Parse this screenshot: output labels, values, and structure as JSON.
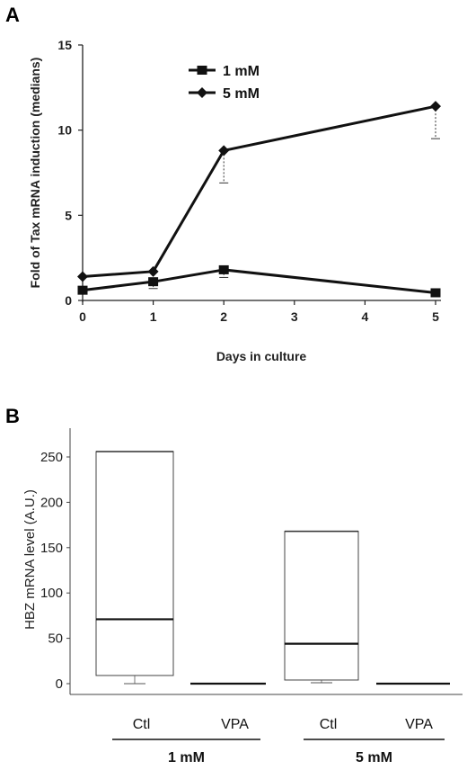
{
  "chart_data": [
    {
      "panel": "A",
      "type": "line",
      "xlabel": "Days in culture",
      "ylabel": "Fold of Tax mRNA induction (medians)",
      "xlim": [
        0,
        5
      ],
      "ylim": [
        0,
        15
      ],
      "x_ticks": [
        0,
        1,
        2,
        3,
        4,
        5
      ],
      "y_ticks": [
        0,
        5,
        10,
        15
      ],
      "legend_position": "top-center",
      "series": [
        {
          "name": "1 mM",
          "marker": "square",
          "x": [
            0,
            1,
            2,
            5
          ],
          "y": [
            0.6,
            1.1,
            1.8,
            0.45
          ],
          "err_low": [
            0.6,
            0.7,
            1.35,
            0.45
          ],
          "err_high": [
            0.6,
            1.1,
            1.8,
            0.45
          ]
        },
        {
          "name": "5 mM",
          "marker": "diamond",
          "x": [
            0,
            1,
            2,
            5
          ],
          "y": [
            1.4,
            1.7,
            8.8,
            11.4
          ],
          "err_low": [
            1.4,
            1.7,
            6.9,
            9.5
          ],
          "err_high": [
            1.4,
            1.7,
            8.8,
            11.4
          ]
        }
      ]
    },
    {
      "panel": "B",
      "type": "box",
      "ylabel": "HBZ mRNA level (A.U.)",
      "ylim": [
        0,
        260
      ],
      "y_ticks": [
        0,
        50,
        100,
        150,
        200,
        250
      ],
      "groups": [
        {
          "name": "1 mM",
          "boxes": [
            {
              "label": "Ctl",
              "q1": 9,
              "median": 71,
              "q3": 256,
              "whisker_low": 0,
              "whisker_high": 256
            },
            {
              "label": "VPA",
              "q1": 0,
              "median": 0,
              "q3": 0,
              "whisker_low": 0,
              "whisker_high": 0
            }
          ]
        },
        {
          "name": "5 mM",
          "boxes": [
            {
              "label": "Ctl",
              "q1": 4,
              "median": 44,
              "q3": 168,
              "whisker_low": 1,
              "whisker_high": 168
            },
            {
              "label": "VPA",
              "q1": 0,
              "median": 0,
              "q3": 0,
              "whisker_low": 0,
              "whisker_high": 0
            }
          ]
        }
      ]
    }
  ]
}
